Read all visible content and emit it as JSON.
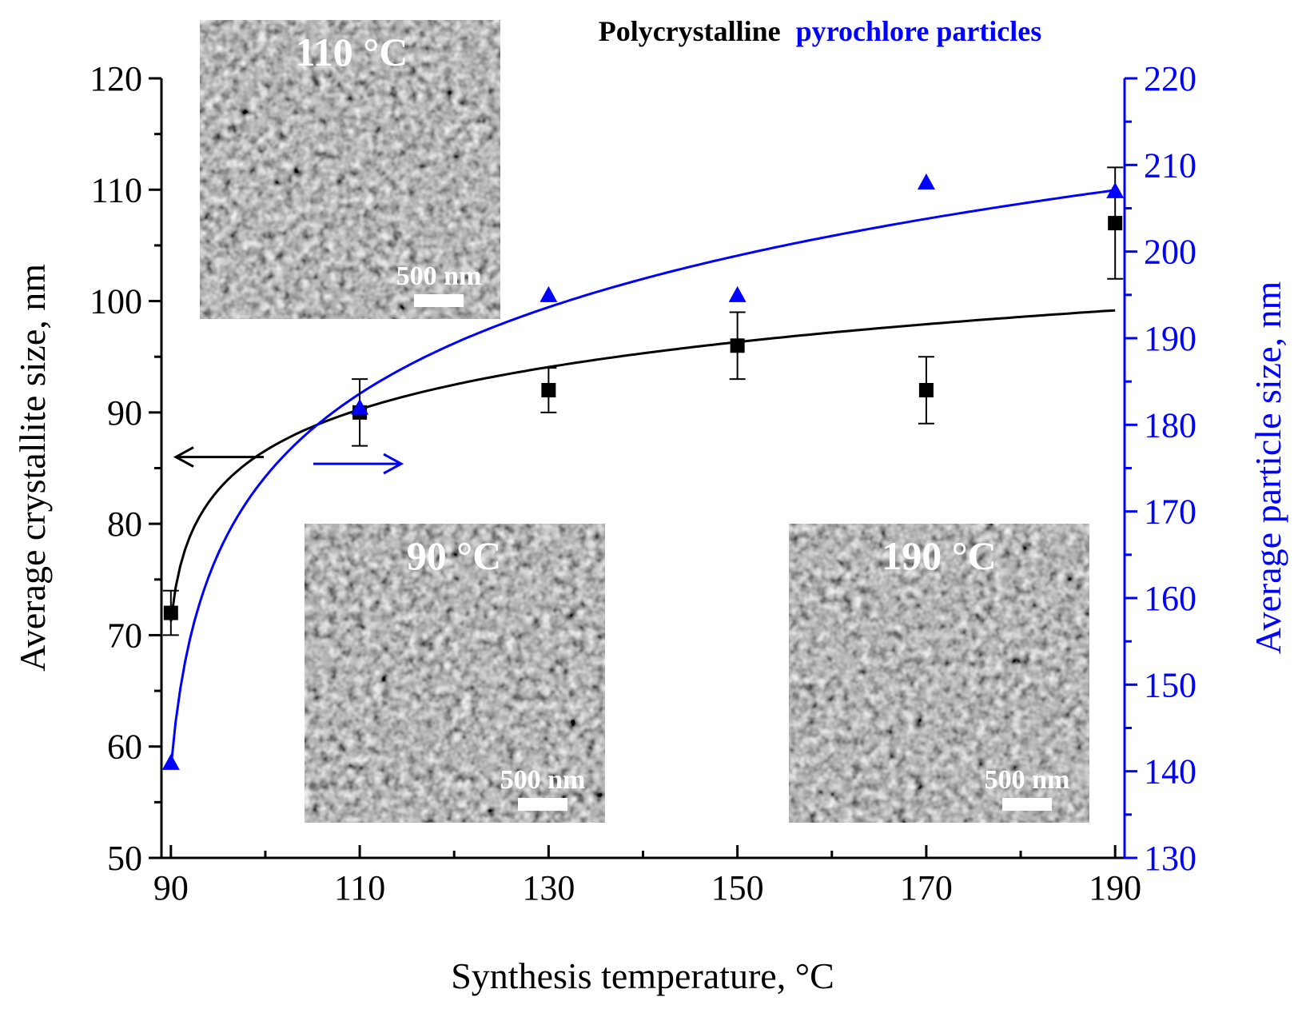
{
  "chart_data": {
    "type": "scatter",
    "title_black": "Polycrystalline",
    "title_blue": "pyrochlore particles",
    "xlabel": "Synthesis temperature, °C",
    "ylabel_left": "Average crystallite size, nm",
    "ylabel_right": "Average particle size, nm",
    "xlim": [
      89,
      191
    ],
    "ylim_left": [
      50,
      120
    ],
    "ylim_right": [
      130,
      220
    ],
    "x_ticks": [
      "90",
      "110",
      "130",
      "150",
      "170",
      "190"
    ],
    "y_left_ticks": [
      "50",
      "60",
      "70",
      "80",
      "90",
      "100",
      "110",
      "120"
    ],
    "y_right_ticks": [
      "130",
      "140",
      "150",
      "160",
      "170",
      "180",
      "190",
      "200",
      "210",
      "220"
    ],
    "grid": false,
    "colors": {
      "left_series": "#000000",
      "right_series": "#0000ff"
    },
    "series": [
      {
        "axis": "left",
        "marker": "square",
        "x": [
          90,
          110,
          130,
          150,
          170,
          190
        ],
        "y": [
          72,
          90,
          92,
          96,
          92,
          107
        ],
        "err_low": [
          70,
          87,
          90,
          93,
          89,
          102
        ],
        "err_high": [
          74,
          93,
          94,
          99,
          95,
          112
        ],
        "fit": "logarithmic"
      },
      {
        "axis": "right",
        "marker": "triangle",
        "x": [
          90,
          110,
          130,
          150,
          170,
          190
        ],
        "y": [
          141,
          182,
          195,
          195,
          208,
          207
        ],
        "fit": "logarithmic"
      }
    ],
    "annotations": [
      {
        "kind": "arrow",
        "direction": "left",
        "meaning": "left axis"
      },
      {
        "kind": "arrow",
        "direction": "right",
        "meaning": "right axis"
      }
    ],
    "insets": [
      {
        "id": "inset-110",
        "label": "110 °C",
        "scale_bar": "500 nm"
      },
      {
        "id": "inset-90",
        "label": "90 °C",
        "scale_bar": "500 nm"
      },
      {
        "id": "inset-190",
        "label": "190 °C",
        "scale_bar": "500 nm"
      }
    ]
  }
}
